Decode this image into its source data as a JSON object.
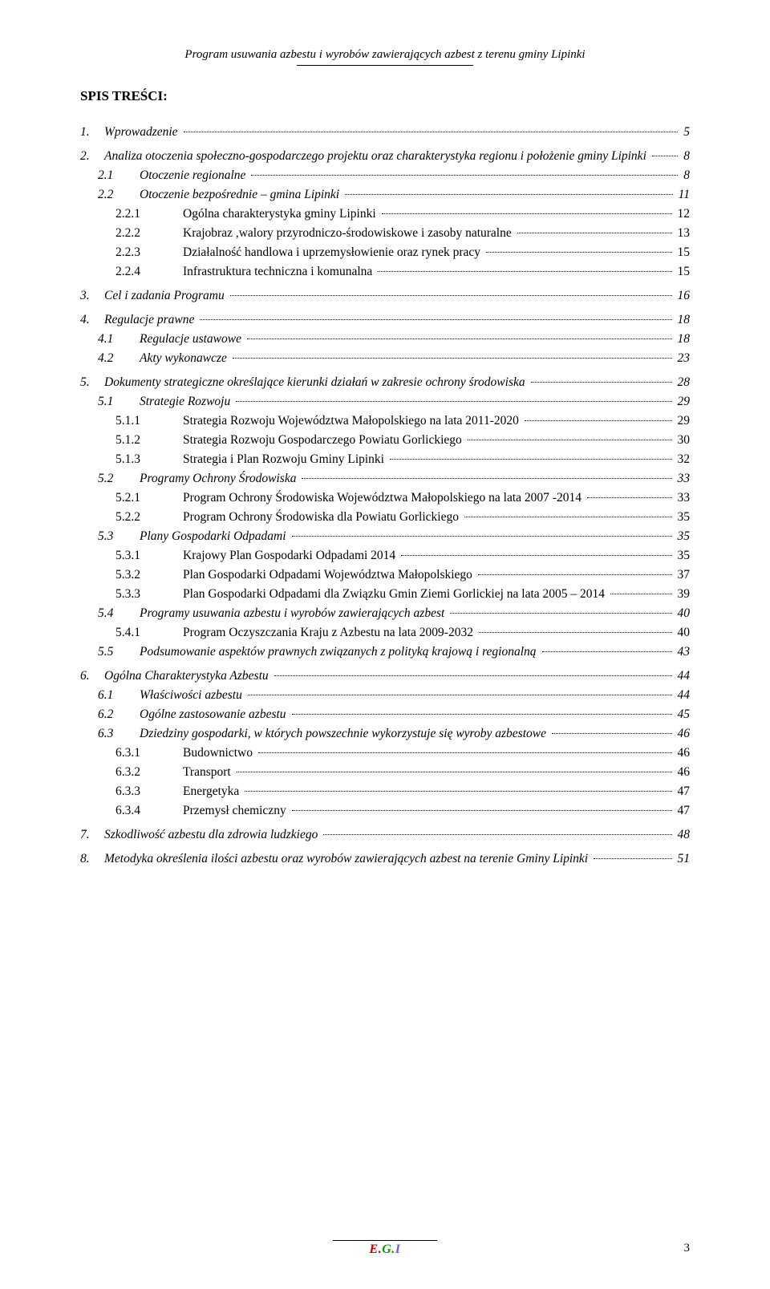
{
  "header": {
    "title": "Program usuwania azbestu i wyrobów zawierających azbest z terenu gminy Lipinki"
  },
  "spis_title": "SPIS TREŚCI:",
  "footer": {
    "logo_e": "E.",
    "logo_g": "G.",
    "logo_i": "I",
    "page_number": "3"
  },
  "toc": [
    {
      "lvl": 1,
      "num": "1.",
      "label": "Wprowadzenie",
      "page": "5"
    },
    {
      "lvl": 1,
      "num": "2.",
      "label": "Analiza otoczenia społeczno-gospodarczego projektu oraz charakterystyka regionu i położenie gminy Lipinki",
      "page": "8"
    },
    {
      "lvl": 2,
      "num": "2.1",
      "label": "Otoczenie regionalne",
      "page": "8"
    },
    {
      "lvl": 2,
      "num": "2.2",
      "label": "Otoczenie bezpośrednie – gmina Lipinki",
      "page": "11"
    },
    {
      "lvl": 3,
      "num": "2.2.1",
      "label": "Ogólna charakterystyka gminy Lipinki",
      "page": "12"
    },
    {
      "lvl": 3,
      "num": "2.2.2",
      "label": "Krajobraz ,walory przyrodniczo-środowiskowe i zasoby naturalne",
      "page": "13"
    },
    {
      "lvl": 3,
      "num": "2.2.3",
      "label": "Działalność handlowa i uprzemysłowienie oraz rynek pracy",
      "page": "15"
    },
    {
      "lvl": 3,
      "num": "2.2.4",
      "label": "Infrastruktura techniczna i komunalna",
      "page": "15"
    },
    {
      "lvl": 1,
      "num": "3.",
      "label": "Cel i zadania Programu",
      "page": "16"
    },
    {
      "lvl": 1,
      "num": "4.",
      "label": "Regulacje prawne",
      "page": "18"
    },
    {
      "lvl": 2,
      "num": "4.1",
      "label": "Regulacje ustawowe",
      "page": "18"
    },
    {
      "lvl": 2,
      "num": "4.2",
      "label": "Akty wykonawcze",
      "page": "23"
    },
    {
      "lvl": 1,
      "num": "5.",
      "label": "Dokumenty strategiczne określające kierunki działań w zakresie ochrony środowiska",
      "page": "28"
    },
    {
      "lvl": 2,
      "num": "5.1",
      "label": "Strategie Rozwoju",
      "page": "29"
    },
    {
      "lvl": 3,
      "num": "5.1.1",
      "label": "Strategia Rozwoju Województwa Małopolskiego na lata 2011-2020",
      "page": "29"
    },
    {
      "lvl": 3,
      "num": "5.1.2",
      "label": "Strategia Rozwoju Gospodarczego Powiatu Gorlickiego",
      "page": "30"
    },
    {
      "lvl": 3,
      "num": "5.1.3",
      "label": "Strategia i Plan Rozwoju Gminy Lipinki",
      "page": "32"
    },
    {
      "lvl": 2,
      "num": "5.2",
      "label": "Programy Ochrony Środowiska",
      "page": "33"
    },
    {
      "lvl": 3,
      "num": "5.2.1",
      "label": "Program Ochrony Środowiska Województwa Małopolskiego na lata 2007 -2014",
      "page": "33"
    },
    {
      "lvl": 3,
      "num": "5.2.2",
      "label": "Program Ochrony Środowiska dla Powiatu Gorlickiego",
      "page": "35"
    },
    {
      "lvl": 2,
      "num": "5.3",
      "label": "Plany Gospodarki Odpadami",
      "page": "35"
    },
    {
      "lvl": 3,
      "num": "5.3.1",
      "label": "Krajowy Plan Gospodarki Odpadami 2014",
      "page": "35"
    },
    {
      "lvl": 3,
      "num": "5.3.2",
      "label": "Plan Gospodarki Odpadami Województwa Małopolskiego",
      "page": "37"
    },
    {
      "lvl": 3,
      "num": "5.3.3",
      "label": "Plan Gospodarki Odpadami dla Związku Gmin Ziemi Gorlickiej na lata 2005 – 2014",
      "page": "39"
    },
    {
      "lvl": 2,
      "num": "5.4",
      "label": "Programy usuwania azbestu i wyrobów zawierających azbest",
      "page": "40"
    },
    {
      "lvl": 3,
      "num": "5.4.1",
      "label": "Program Oczyszczania Kraju z Azbestu na lata 2009-2032",
      "page": "40"
    },
    {
      "lvl": 2,
      "num": "5.5",
      "label": "Podsumowanie aspektów prawnych związanych z polityką krajową  i regionalną",
      "page": "43"
    },
    {
      "lvl": 1,
      "num": "6.",
      "label": "Ogólna Charakterystyka Azbestu",
      "page": "44"
    },
    {
      "lvl": 2,
      "num": "6.1",
      "label": "Właściwości azbestu",
      "page": "44"
    },
    {
      "lvl": 2,
      "num": "6.2",
      "label": "Ogólne zastosowanie azbestu",
      "page": "45"
    },
    {
      "lvl": 2,
      "num": "6.3",
      "label": "Dziedziny gospodarki, w których powszechnie wykorzystuje się wyroby azbestowe",
      "page": "46"
    },
    {
      "lvl": 3,
      "num": "6.3.1",
      "label": "Budownictwo",
      "page": "46"
    },
    {
      "lvl": 3,
      "num": "6.3.2",
      "label": "Transport",
      "page": "46"
    },
    {
      "lvl": 3,
      "num": "6.3.3",
      "label": "Energetyka",
      "page": "47"
    },
    {
      "lvl": 3,
      "num": "6.3.4",
      "label": "Przemysł chemiczny",
      "page": "47"
    },
    {
      "lvl": 1,
      "num": "7.",
      "label": "Szkodliwość azbestu dla zdrowia ludzkiego",
      "page": "48"
    },
    {
      "lvl": 1,
      "num": "8.",
      "label": "Metodyka określenia ilości azbestu oraz wyrobów zawierających azbest  na terenie Gminy Lipinki",
      "page": "51"
    }
  ]
}
